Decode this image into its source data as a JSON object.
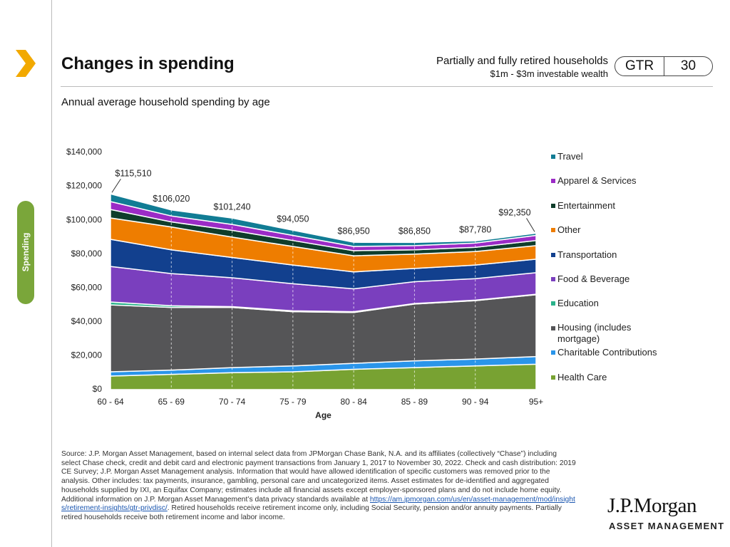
{
  "header": {
    "title": "Changes in spending",
    "audience": "Partially and fully retired households",
    "wealth": "$1m - $3m investable wealth",
    "guide": "GTR",
    "page": "30"
  },
  "side_tab": "Spending",
  "chart_data": {
    "type": "stacked_area",
    "title": "Annual average household spending by age",
    "x_label": "Age",
    "categories": [
      "60 - 64",
      "65 - 69",
      "70 - 74",
      "75 - 79",
      "80 - 84",
      "85 - 89",
      "90 - 94",
      "95+"
    ],
    "series": [
      {
        "name": "Health Care",
        "color": "#78a232",
        "values": [
          8000,
          9000,
          10000,
          10500,
          12000,
          13000,
          14000,
          15000
        ]
      },
      {
        "name": "Charitable Contributions",
        "color": "#2a95ea",
        "values": [
          2500,
          2500,
          3000,
          3500,
          3500,
          4000,
          4000,
          4500
        ]
      },
      {
        "name": "Housing (includes mortgage)",
        "color": "#555557",
        "values": [
          39500,
          37000,
          35500,
          32000,
          30000,
          33500,
          34500,
          36500
        ]
      },
      {
        "name": "Education",
        "color": "#2bb38b",
        "values": [
          1700,
          1000,
          500,
          500,
          500,
          300,
          300,
          300
        ]
      },
      {
        "name": "Food & Beverage",
        "color": "#7a3fbe",
        "values": [
          21000,
          19000,
          17000,
          16000,
          13500,
          12900,
          12700,
          12700
        ]
      },
      {
        "name": "Transportation",
        "color": "#12408e",
        "values": [
          16000,
          14000,
          12000,
          11000,
          10000,
          7800,
          8000,
          8000
        ]
      },
      {
        "name": "Other",
        "color": "#ee7d00",
        "values": [
          12600,
          13500,
          12000,
          11000,
          9500,
          8500,
          8000,
          8000
        ]
      },
      {
        "name": "Entertainment",
        "color": "#0f3d2b",
        "values": [
          5000,
          3000,
          4000,
          3500,
          3000,
          2500,
          2500,
          3000
        ]
      },
      {
        "name": "Apparel & Services",
        "color": "#9b2bc6",
        "values": [
          4700,
          3500,
          3500,
          3000,
          2500,
          2500,
          2500,
          3000
        ]
      },
      {
        "name": "Travel",
        "color": "#117c94",
        "values": [
          4510,
          3520,
          3740,
          3050,
          2450,
          1850,
          1280,
          1350
        ]
      }
    ],
    "totals": [
      115510,
      106020,
      101240,
      94050,
      86950,
      86850,
      87780,
      92350
    ],
    "total_labels": [
      "$115,510",
      "$106,020",
      "$101,240",
      "$94,050",
      "$86,950",
      "$86,850",
      "$87,780",
      "$92,350"
    ],
    "ylim": [
      0,
      140000
    ],
    "yticks": [
      {
        "value": 0,
        "label": "$0"
      },
      {
        "value": 20000,
        "label": "$20,000"
      },
      {
        "value": 40000,
        "label": "$40,000"
      },
      {
        "value": 60000,
        "label": "$60,000"
      },
      {
        "value": 80000,
        "label": "$80,000"
      },
      {
        "value": 100000,
        "label": "$100,000"
      },
      {
        "value": 120000,
        "label": "$120,000"
      },
      {
        "value": 140000,
        "label": "$140,000"
      }
    ]
  },
  "footnote": {
    "text": "Source: J.P. Morgan Asset Management, based on internal select data from JPMorgan Chase Bank, N.A. and its affiliates (collectively “Chase”) including select Chase check, credit and debit card and electronic payment transactions from January 1, 2017 to November 30, 2022. Check and cash distribution: 2019 CE Survey; J.P. Morgan Asset Management analysis. Information that would have allowed identification of specific customers was removed prior to the analysis. Other includes: tax payments, insurance, gambling, personal care and uncategorized items. Asset estimates for de-identified and aggregated households supplied by IXI, an Equifax Company; estimates include all financial assets except employer-sponsored plans and do not include home equity. Additional information on J.P. Morgan Asset Management’s data privacy standards available at ",
    "link": "https://am.jpmorgan.com/us/en/asset-management/mod/insights/retirement-insights/gtr-privdisc/",
    "text_after": ". Retired households receive retirement income only, including Social Security, pension and/or annuity payments. Partially retired households receive both retirement income and labor income."
  },
  "logo": {
    "name": "J.P.Morgan",
    "division": "ASSET MANAGEMENT"
  }
}
